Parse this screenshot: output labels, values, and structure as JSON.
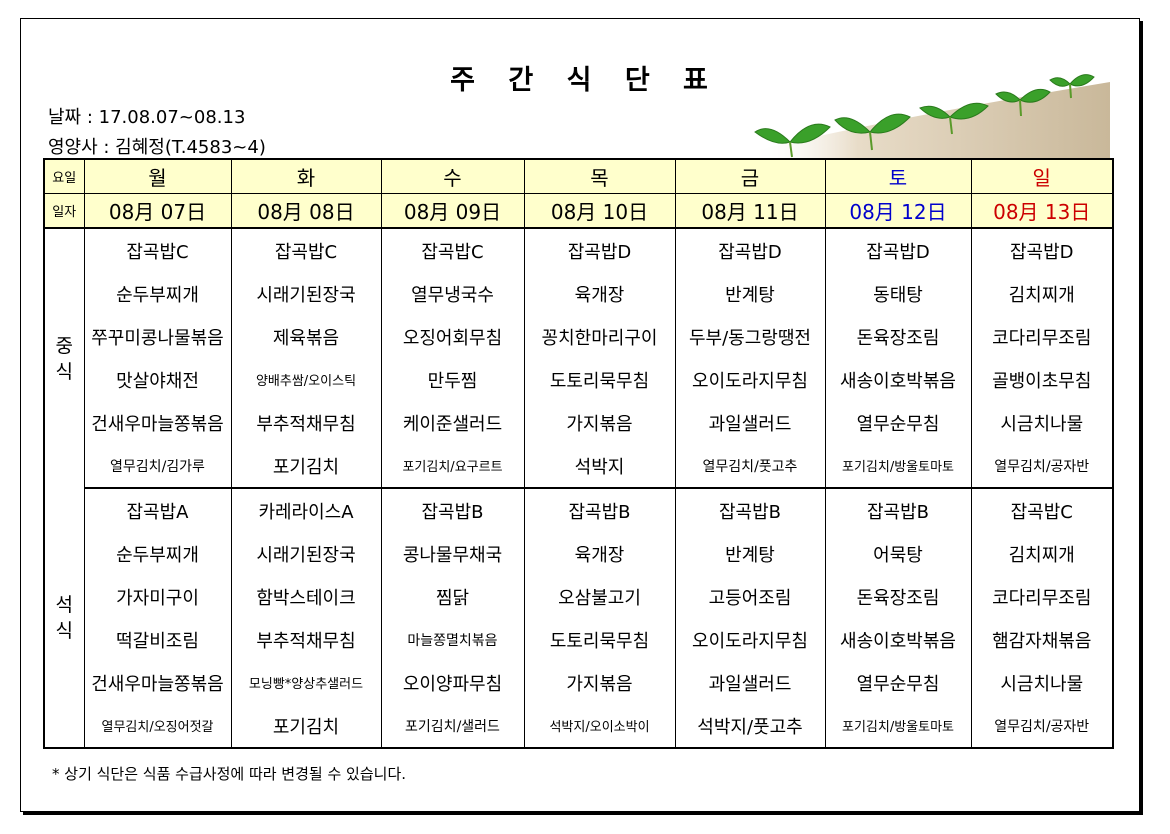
{
  "title": "주 간 식 단 표",
  "date_line": "날짜 : 17.08.07~08.13",
  "dietitian_line": "영양사 : 김혜정(T.4583~4)",
  "header": {
    "day_label": "요일",
    "date_label": "일자",
    "days": [
      "월",
      "화",
      "수",
      "목",
      "금",
      "토",
      "일"
    ],
    "dates": [
      "08月 07日",
      "08月 08日",
      "08月 09日",
      "08月 10日",
      "08月 11日",
      "08月 12日",
      "08月 13日"
    ]
  },
  "lunch": {
    "label_1": "중",
    "label_2": "식",
    "rows": [
      [
        "잡곡밥C",
        "잡곡밥C",
        "잡곡밥C",
        "잡곡밥D",
        "잡곡밥D",
        "잡곡밥D",
        "잡곡밥D"
      ],
      [
        "순두부찌개",
        "시래기된장국",
        "열무냉국수",
        "육개장",
        "반계탕",
        "동태탕",
        "김치찌개"
      ],
      [
        "쭈꾸미콩나물볶음",
        "제육볶음",
        "오징어회무침",
        "꽁치한마리구이",
        "두부/동그랑땡전",
        "돈육장조림",
        "코다리무조림"
      ],
      [
        "맛살야채전",
        "양배추쌈/오이스틱",
        "만두찜",
        "도토리묵무침",
        "오이도라지무침",
        "새송이호박볶음",
        "골뱅이초무침"
      ],
      [
        "건새우마늘쫑볶음",
        "부추적채무침",
        "케이준샐러드",
        "가지볶음",
        "과일샐러드",
        "열무순무침",
        "시금치나물"
      ],
      [
        "열무김치/김가루",
        "포기김치",
        "포기김치/요구르트",
        "석박지",
        "열무김치/풋고추",
        "포기김치/방울토마토",
        "열무김치/공자반"
      ]
    ]
  },
  "dinner": {
    "label_1": "석",
    "label_2": "식",
    "rows": [
      [
        "잡곡밥A",
        "카레라이스A",
        "잡곡밥B",
        "잡곡밥B",
        "잡곡밥B",
        "잡곡밥B",
        "잡곡밥C"
      ],
      [
        "순두부찌개",
        "시래기된장국",
        "콩나물무채국",
        "육개장",
        "반계탕",
        "어묵탕",
        "김치찌개"
      ],
      [
        "가자미구이",
        "함박스테이크",
        "찜닭",
        "오삼불고기",
        "고등어조림",
        "돈육장조림",
        "코다리무조림"
      ],
      [
        "떡갈비조림",
        "부추적채무침",
        "마늘쫑멸치볶음",
        "도토리묵무침",
        "오이도라지무침",
        "새송이호박볶음",
        "햄감자채볶음"
      ],
      [
        "건새우마늘쫑볶음",
        "모닝빵*양상추샐러드",
        "오이양파무침",
        "가지볶음",
        "과일샐러드",
        "열무순무침",
        "시금치나물"
      ],
      [
        "열무김치/오징어젓갈",
        "포기김치",
        "포기김치/샐러드",
        "석박지/오이소박이",
        "석박지/풋고추",
        "포기김치/방울토마토",
        "열무김치/공자반"
      ]
    ]
  },
  "note": "* 상기 식단은 식품 수급사정에 따라 변경될 수 있습니다."
}
